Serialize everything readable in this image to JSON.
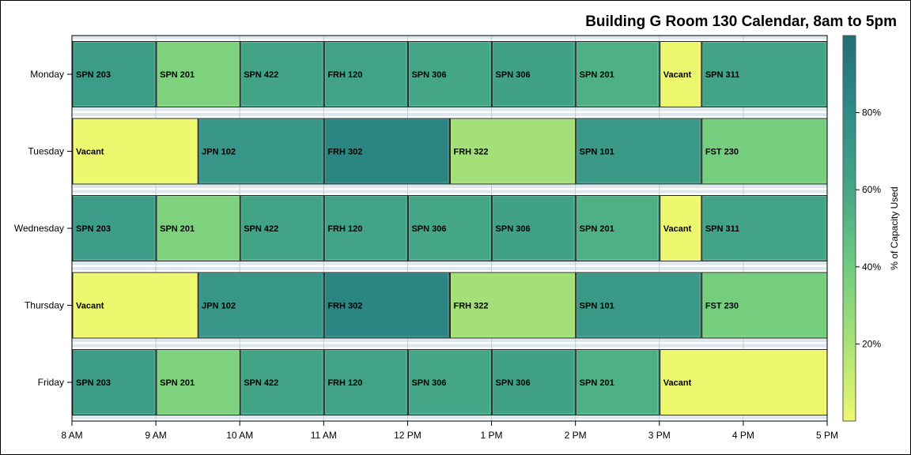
{
  "chart_data": {
    "type": "heatmap",
    "title": "Building G Room 130 Calendar, 8am to 5pm",
    "xlabel": "",
    "ylabel": "",
    "x_tick_labels": [
      "8 AM",
      "9 AM",
      "10 AM",
      "11 AM",
      "12 PM",
      "1 PM",
      "2 PM",
      "3 PM",
      "4 PM",
      "5 PM"
    ],
    "xlim": [
      8,
      17
    ],
    "grid": true,
    "days": [
      "Monday",
      "Tuesday",
      "Wednesday",
      "Thursday",
      "Friday"
    ],
    "colorbar": {
      "label": "% of Capacity Used",
      "tick_labels": [
        "20%",
        "40%",
        "60%",
        "80%"
      ],
      "ticks": [
        20,
        40,
        60,
        80
      ],
      "range": [
        0,
        100
      ],
      "colors": [
        "#eef86f",
        "#a9e276",
        "#6fcc7f",
        "#45a687",
        "#2e8c87",
        "#236e74"
      ]
    },
    "series": [
      {
        "day": "Monday",
        "sessions": [
          {
            "label": "SPN 203",
            "start": 8,
            "end": 9,
            "capacity": 68
          },
          {
            "label": "SPN 201",
            "start": 9,
            "end": 10,
            "capacity": 35
          },
          {
            "label": "SPN 422",
            "start": 10,
            "end": 11,
            "capacity": 62
          },
          {
            "label": "FRH 120",
            "start": 11,
            "end": 12,
            "capacity": 63
          },
          {
            "label": "SPN 306",
            "start": 12,
            "end": 13,
            "capacity": 60
          },
          {
            "label": "SPN 306",
            "start": 13,
            "end": 14,
            "capacity": 64
          },
          {
            "label": "SPN 201",
            "start": 14,
            "end": 15,
            "capacity": 55
          },
          {
            "label": "Vacant",
            "start": 15,
            "end": 15.5,
            "capacity": 0
          },
          {
            "label": "SPN 311",
            "start": 15.5,
            "end": 17,
            "capacity": 62
          }
        ]
      },
      {
        "day": "Tuesday",
        "sessions": [
          {
            "label": "Vacant",
            "start": 8,
            "end": 9.5,
            "capacity": 0
          },
          {
            "label": "JPN 102",
            "start": 9.5,
            "end": 11,
            "capacity": 72
          },
          {
            "label": "FRH 302",
            "start": 11,
            "end": 12.5,
            "capacity": 85
          },
          {
            "label": "FRH 322",
            "start": 12.5,
            "end": 14,
            "capacity": 22
          },
          {
            "label": "SPN 101",
            "start": 14,
            "end": 15.5,
            "capacity": 70
          },
          {
            "label": "FST 230",
            "start": 15.5,
            "end": 17,
            "capacity": 38
          }
        ]
      },
      {
        "day": "Wednesday",
        "sessions": [
          {
            "label": "SPN 203",
            "start": 8,
            "end": 9,
            "capacity": 68
          },
          {
            "label": "SPN 201",
            "start": 9,
            "end": 10,
            "capacity": 35
          },
          {
            "label": "SPN 422",
            "start": 10,
            "end": 11,
            "capacity": 62
          },
          {
            "label": "FRH 120",
            "start": 11,
            "end": 12,
            "capacity": 63
          },
          {
            "label": "SPN 306",
            "start": 12,
            "end": 13,
            "capacity": 60
          },
          {
            "label": "SPN 306",
            "start": 13,
            "end": 14,
            "capacity": 64
          },
          {
            "label": "SPN 201",
            "start": 14,
            "end": 15,
            "capacity": 55
          },
          {
            "label": "Vacant",
            "start": 15,
            "end": 15.5,
            "capacity": 0
          },
          {
            "label": "SPN 311",
            "start": 15.5,
            "end": 17,
            "capacity": 62
          }
        ]
      },
      {
        "day": "Thursday",
        "sessions": [
          {
            "label": "Vacant",
            "start": 8,
            "end": 9.5,
            "capacity": 0
          },
          {
            "label": "JPN 102",
            "start": 9.5,
            "end": 11,
            "capacity": 72
          },
          {
            "label": "FRH 302",
            "start": 11,
            "end": 12.5,
            "capacity": 85
          },
          {
            "label": "FRH 322",
            "start": 12.5,
            "end": 14,
            "capacity": 22
          },
          {
            "label": "SPN 101",
            "start": 14,
            "end": 15.5,
            "capacity": 70
          },
          {
            "label": "FST 230",
            "start": 15.5,
            "end": 17,
            "capacity": 38
          }
        ]
      },
      {
        "day": "Friday",
        "sessions": [
          {
            "label": "SPN 203",
            "start": 8,
            "end": 9,
            "capacity": 68
          },
          {
            "label": "SPN 201",
            "start": 9,
            "end": 10,
            "capacity": 35
          },
          {
            "label": "SPN 422",
            "start": 10,
            "end": 11,
            "capacity": 62
          },
          {
            "label": "FRH 120",
            "start": 11,
            "end": 12,
            "capacity": 63
          },
          {
            "label": "SPN 306",
            "start": 12,
            "end": 13,
            "capacity": 60
          },
          {
            "label": "SPN 306",
            "start": 13,
            "end": 14,
            "capacity": 64
          },
          {
            "label": "SPN 201",
            "start": 14,
            "end": 15,
            "capacity": 55
          },
          {
            "label": "Vacant",
            "start": 15,
            "end": 17,
            "capacity": 0
          }
        ]
      }
    ]
  }
}
